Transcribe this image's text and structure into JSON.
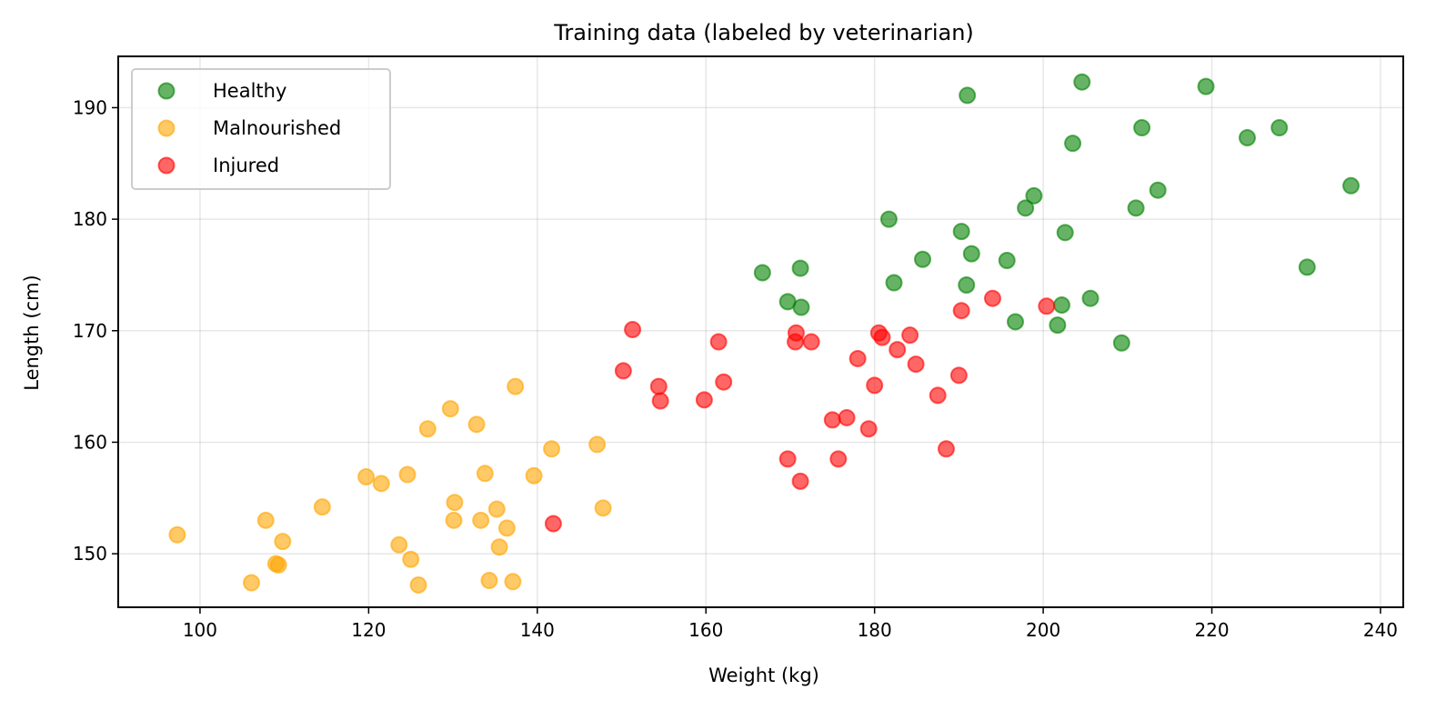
{
  "chart_data": {
    "type": "scatter",
    "title": "Training data (labeled by veterinarian)",
    "xlabel": "Weight (kg)",
    "ylabel": "Length (cm)",
    "xlim": [
      90.3,
      242.7
    ],
    "ylim": [
      145.2,
      194.6
    ],
    "xticks": [
      100,
      120,
      140,
      160,
      180,
      200,
      220,
      240
    ],
    "yticks": [
      150,
      160,
      170,
      180,
      190
    ],
    "grid": true,
    "legend_position": "top-left",
    "series": [
      {
        "name": "Healthy",
        "color": "#008000",
        "points": [
          [
            191.0,
            191.1
          ],
          [
            204.6,
            192.3
          ],
          [
            219.3,
            191.9
          ],
          [
            211.7,
            188.2
          ],
          [
            224.2,
            187.3
          ],
          [
            228.0,
            188.2
          ],
          [
            203.5,
            186.8
          ],
          [
            236.5,
            183.0
          ],
          [
            213.6,
            182.6
          ],
          [
            198.9,
            182.1
          ],
          [
            197.9,
            181.0
          ],
          [
            211.0,
            181.0
          ],
          [
            181.7,
            180.0
          ],
          [
            190.3,
            178.9
          ],
          [
            191.5,
            176.9
          ],
          [
            202.6,
            178.8
          ],
          [
            185.7,
            176.4
          ],
          [
            195.7,
            176.3
          ],
          [
            171.2,
            175.6
          ],
          [
            166.7,
            175.2
          ],
          [
            231.3,
            175.7
          ],
          [
            190.9,
            174.1
          ],
          [
            182.3,
            174.3
          ],
          [
            169.7,
            172.6
          ],
          [
            171.3,
            172.1
          ],
          [
            202.2,
            172.3
          ],
          [
            205.6,
            172.9
          ],
          [
            196.7,
            170.8
          ],
          [
            201.7,
            170.5
          ],
          [
            209.3,
            168.9
          ]
        ]
      },
      {
        "name": "Malnourished",
        "color": "#FFA500",
        "points": [
          [
            97.3,
            151.7
          ],
          [
            106.1,
            147.4
          ],
          [
            107.8,
            153.0
          ],
          [
            109.3,
            149.0
          ],
          [
            109.8,
            151.1
          ],
          [
            109.0,
            149.1
          ],
          [
            114.5,
            154.2
          ],
          [
            119.7,
            156.9
          ],
          [
            121.5,
            156.3
          ],
          [
            124.6,
            157.1
          ],
          [
            123.6,
            150.8
          ],
          [
            125.0,
            149.5
          ],
          [
            125.9,
            147.2
          ],
          [
            127.0,
            161.2
          ],
          [
            129.7,
            163.0
          ],
          [
            130.2,
            154.6
          ],
          [
            130.1,
            153.0
          ],
          [
            132.8,
            161.6
          ],
          [
            133.8,
            157.2
          ],
          [
            133.3,
            153.0
          ],
          [
            135.5,
            150.6
          ],
          [
            135.2,
            154.0
          ],
          [
            136.4,
            152.3
          ],
          [
            134.3,
            147.6
          ],
          [
            137.1,
            147.5
          ],
          [
            137.4,
            165.0
          ],
          [
            139.6,
            157.0
          ],
          [
            141.7,
            159.4
          ],
          [
            147.1,
            159.8
          ],
          [
            147.8,
            154.1
          ]
        ]
      },
      {
        "name": "Injured",
        "color": "#FF0000",
        "points": [
          [
            151.3,
            170.1
          ],
          [
            150.2,
            166.4
          ],
          [
            154.4,
            165.0
          ],
          [
            154.6,
            163.7
          ],
          [
            141.9,
            152.7
          ],
          [
            159.8,
            163.8
          ],
          [
            161.5,
            169.0
          ],
          [
            162.1,
            165.4
          ],
          [
            169.7,
            158.5
          ],
          [
            171.2,
            156.5
          ],
          [
            170.6,
            169.0
          ],
          [
            170.7,
            169.8
          ],
          [
            172.5,
            169.0
          ],
          [
            175.0,
            162.0
          ],
          [
            175.7,
            158.5
          ],
          [
            176.7,
            162.2
          ],
          [
            178.0,
            167.5
          ],
          [
            179.3,
            161.2
          ],
          [
            180.0,
            165.1
          ],
          [
            180.5,
            169.8
          ],
          [
            180.9,
            169.4
          ],
          [
            182.7,
            168.3
          ],
          [
            184.2,
            169.6
          ],
          [
            184.9,
            167.0
          ],
          [
            187.5,
            164.2
          ],
          [
            188.5,
            159.4
          ],
          [
            190.0,
            166.0
          ],
          [
            190.3,
            171.8
          ],
          [
            194.0,
            172.9
          ],
          [
            200.4,
            172.2
          ]
        ]
      }
    ]
  }
}
